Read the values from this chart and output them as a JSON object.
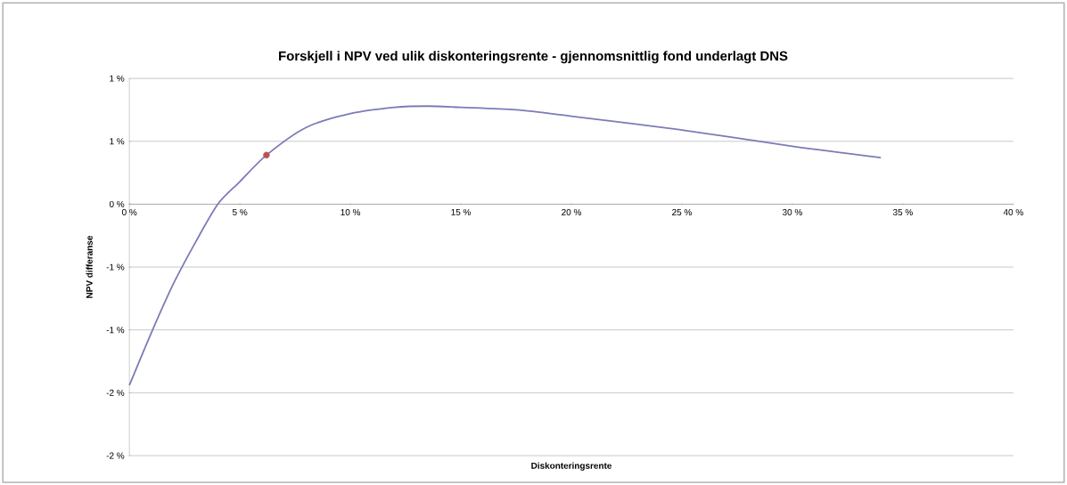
{
  "chart_data": {
    "type": "line",
    "title": "Forskjell i NPV ved ulik diskonteringsrente - gjennomsnittlig fond underlagt DNS",
    "xlabel": "Diskonteringsrente",
    "ylabel": "NPV differanse",
    "series": [
      {
        "color": "#7b7bb8",
        "x": [
          0,
          1,
          2,
          3,
          4,
          5,
          6.2,
          8,
          10,
          12,
          13.5,
          15,
          17.5,
          20,
          25,
          30,
          34
        ],
        "values": [
          -1.44,
          -1.02,
          -0.63,
          -0.3,
          0,
          0.18,
          0.39,
          0.61,
          0.72,
          0.77,
          0.78,
          0.77,
          0.75,
          0.7,
          0.59,
          0.46,
          0.37
        ]
      },
      {
        "type": "scatter",
        "color": "#c0504d",
        "marker": "circle",
        "x": [
          6.2
        ],
        "values": [
          0.39
        ]
      }
    ],
    "xlim": [
      0,
      40
    ],
    "xticks": [
      {
        "value": 0,
        "label": "0 %"
      },
      {
        "value": 5,
        "label": "5 %"
      },
      {
        "value": 10,
        "label": "10 %"
      },
      {
        "value": 15,
        "label": "15 %"
      },
      {
        "value": 20,
        "label": "20 %"
      },
      {
        "value": 25,
        "label": "25 %"
      },
      {
        "value": 30,
        "label": "30 %"
      },
      {
        "value": 35,
        "label": "35 %"
      },
      {
        "value": 40,
        "label": "40 %"
      }
    ],
    "ylim": [
      -2,
      1
    ],
    "yticks": [
      {
        "value": -2,
        "label": "-2 %"
      },
      {
        "value": -1.5,
        "label": "-2 %"
      },
      {
        "value": -1,
        "label": "-1 %"
      },
      {
        "value": -0.5,
        "label": "-1 %"
      },
      {
        "value": 0,
        "label": "0 %"
      },
      {
        "value": 0.5,
        "label": "1 %"
      },
      {
        "value": 1,
        "label": "1 %"
      }
    ],
    "grid": "y"
  }
}
